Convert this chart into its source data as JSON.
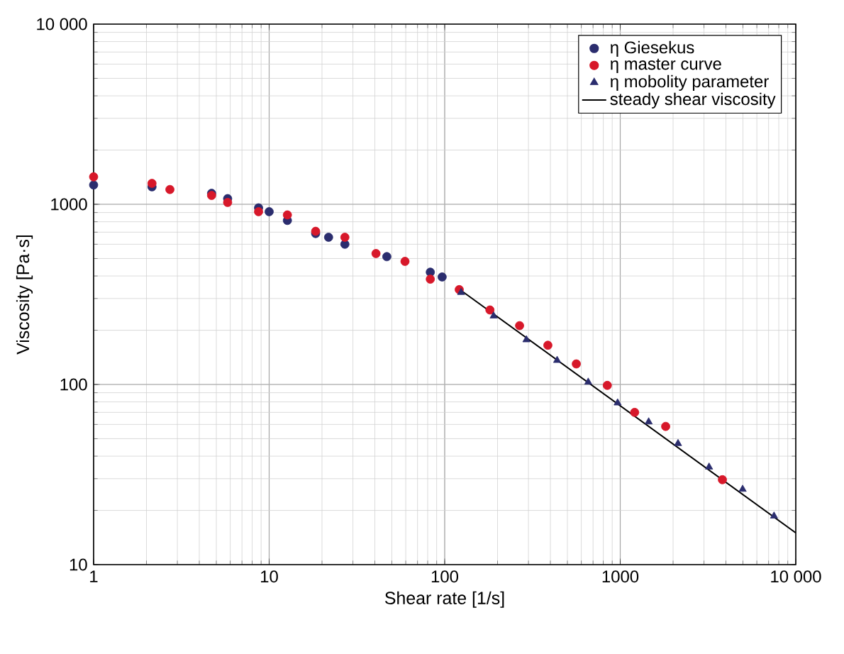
{
  "chart_data": {
    "type": "scatter",
    "xlabel": "Shear rate [1/s]",
    "ylabel": "Viscosity [Pa·s]",
    "log": "xy",
    "grid": true,
    "legend": "top right",
    "xlim": [
      1,
      10000
    ],
    "ylim": [
      10,
      10000
    ],
    "xticks": [
      1,
      10,
      100,
      1000,
      {
        "value": 10000,
        "label": "10 000"
      }
    ],
    "yticks": [
      10,
      100,
      1000,
      {
        "value": 10000,
        "label": "10 000"
      }
    ],
    "series": [
      {
        "name": "η Giesekus",
        "marker": "circle",
        "color": "#2b2d6e",
        "x": [
          1,
          2.15,
          4.7,
          5.8,
          8.7,
          10,
          12.7,
          18.4,
          21.8,
          27,
          46.8,
          82.8,
          96.7
        ],
        "values": [
          1280,
          1250,
          1150,
          1075,
          955,
          910,
          813,
          688,
          656,
          600,
          512,
          420,
          395
        ]
      },
      {
        "name": "η master curve",
        "marker": "circle",
        "color": "#d7182a",
        "x": [
          1,
          2.15,
          2.72,
          4.7,
          5.8,
          8.7,
          12.7,
          18.4,
          27,
          40.6,
          59.4,
          82.8,
          121,
          181,
          267,
          387,
          562,
          844,
          1208,
          1815,
          3820
        ],
        "values": [
          1420,
          1306,
          1208,
          1119,
          1024,
          910,
          873,
          708,
          656,
          533,
          482,
          384,
          336,
          259,
          212,
          165,
          130,
          98.8,
          70,
          58.5,
          29.6
        ]
      },
      {
        "name": "η mobolity parameter",
        "marker": "triangle",
        "color": "#2b2d6e",
        "x": [
          124,
          190,
          292,
          437,
          657,
          966,
          1452,
          2134,
          3206,
          4980,
          7516
        ],
        "values": [
          324,
          240,
          177,
          136,
          103,
          79,
          62,
          47,
          34.8,
          26.2,
          18.6
        ]
      },
      {
        "name": "steady shear viscosity",
        "type": "line",
        "marker": "none",
        "line_style": "solid",
        "color": "#000000",
        "x": [
          120,
          10000
        ],
        "values": [
          340,
          15
        ]
      }
    ]
  }
}
